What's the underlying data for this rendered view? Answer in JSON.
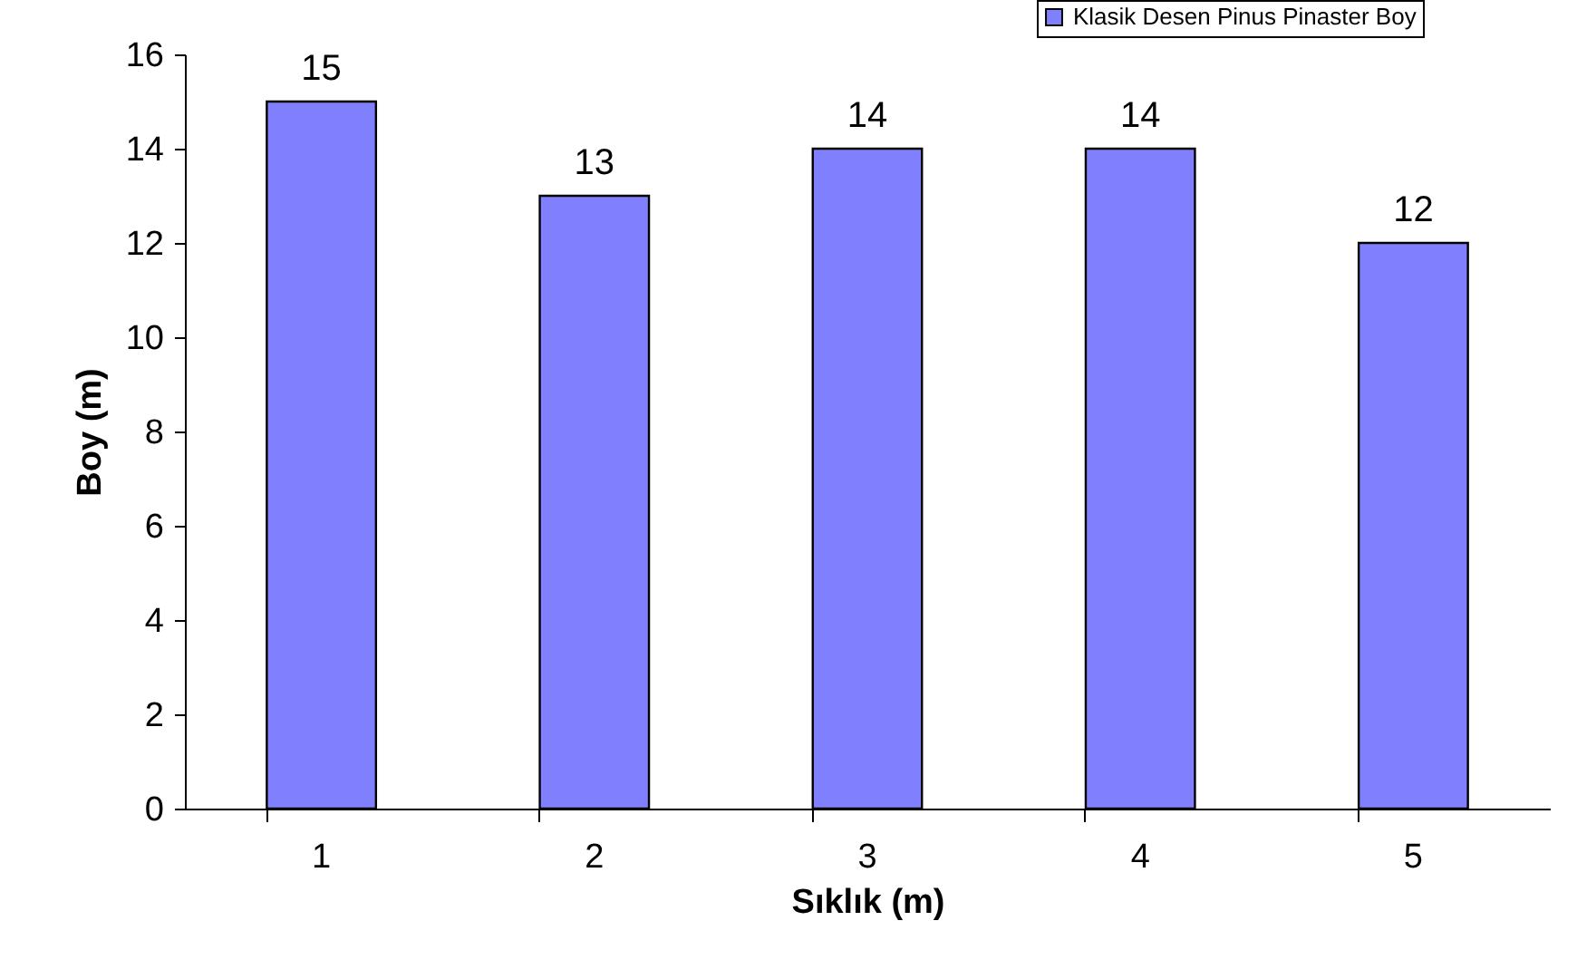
{
  "chart_data": {
    "type": "bar",
    "xlabel": "Sıklık (m)",
    "ylabel": "Boy (m)",
    "categories": [
      "1",
      "2",
      "3",
      "4",
      "5"
    ],
    "series": [
      {
        "name": "Klasik Desen Pinus Pinaster Boy",
        "color": "#8080ff",
        "values": [
          15,
          13,
          14,
          14,
          12
        ]
      }
    ],
    "ylim": [
      0,
      16
    ],
    "yticks": [
      0,
      2,
      4,
      6,
      8,
      10,
      12,
      14,
      16
    ],
    "grid": false,
    "legend": "top right",
    "data_labels": true
  }
}
